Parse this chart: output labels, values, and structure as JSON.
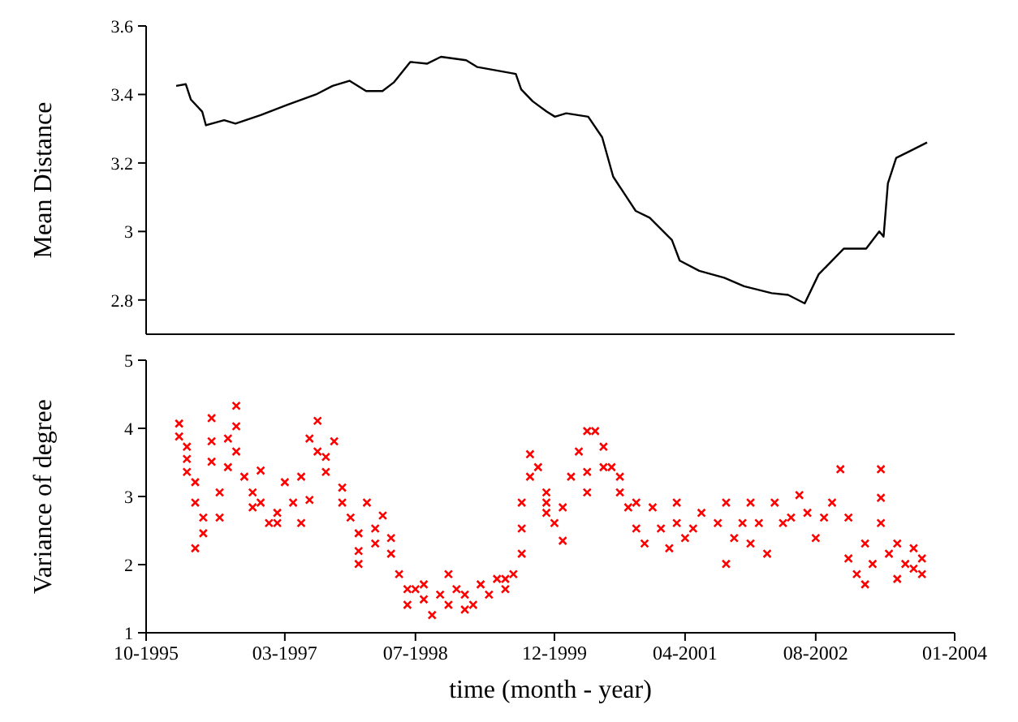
{
  "chart_data": [
    {
      "type": "line",
      "ylabel": "Mean Distance",
      "color": "#000000",
      "marker": "none",
      "line_style": "solid",
      "tick_labels": "y",
      "xlim": [
        "1995-10",
        "2004-01"
      ],
      "xticks": [
        {
          "value": "1995-10",
          "label": null
        },
        {
          "value": "1997-03",
          "label": null
        },
        {
          "value": "1998-07",
          "label": null
        },
        {
          "value": "1999-12",
          "label": null
        },
        {
          "value": "2001-04",
          "label": null
        },
        {
          "value": "2002-08",
          "label": null
        },
        {
          "value": "2004-01",
          "label": null
        }
      ],
      "ylim": [
        2.7,
        3.6
      ],
      "yticks": [
        2.8,
        3,
        3.2,
        3.4,
        3.6
      ],
      "x": [
        "1996-01-21",
        "1996-02-26",
        "1996-03-16",
        "1996-04-27",
        "1996-05-11",
        "1996-07-18",
        "1996-08-29",
        "1996-12-01",
        "1997-03-11",
        "1997-06-25",
        "1997-08-26",
        "1997-10-28",
        "1997-12-29",
        "1998-02-28",
        "1998-04-11",
        "1998-06-12",
        "1998-08-14",
        "1998-10-04",
        "1999-01-06",
        "1999-02-17",
        "1999-07-10",
        "1999-07-30",
        "1999-09-11",
        "1999-11-02",
        "1999-12-03",
        "2000-01-14",
        "2000-04-05",
        "2000-05-27",
        "2000-07-07",
        "2000-09-29",
        "2000-11-20",
        "2001-02-11",
        "2001-03-12",
        "2001-05-24",
        "2001-08-25",
        "2001-11-07",
        "2002-02-18",
        "2002-04-20",
        "2002-06-21",
        "2002-08-12",
        "2002-11-14",
        "2003-02-05",
        "2003-03-26",
        "2003-04-11",
        "2003-04-27",
        "2003-05-28",
        "2003-07-19",
        "2003-09-20"
      ],
      "values": [
        3.425,
        3.43,
        3.385,
        3.35,
        3.31,
        3.325,
        3.315,
        3.34,
        3.37,
        3.4,
        3.425,
        3.44,
        3.41,
        3.41,
        3.435,
        3.495,
        3.49,
        3.51,
        3.5,
        3.48,
        3.46,
        3.415,
        3.38,
        3.35,
        3.335,
        3.345,
        3.335,
        3.275,
        3.16,
        3.06,
        3.04,
        2.975,
        2.915,
        2.885,
        2.865,
        2.84,
        2.82,
        2.815,
        2.79,
        2.875,
        2.95,
        2.95,
        3.0,
        2.985,
        3.14,
        3.215,
        3.235,
        3.26
      ]
    },
    {
      "type": "scatter",
      "ylabel": "Variance of degree",
      "xlabel": "time (month - year)",
      "color": "#ff0000",
      "marker": "cross",
      "xlim": [
        "1995-10",
        "2004-01"
      ],
      "xticks": [
        {
          "value": "1995-10",
          "label": "10-1995"
        },
        {
          "value": "1997-03",
          "label": "03-1997"
        },
        {
          "value": "1998-07",
          "label": "07-1998"
        },
        {
          "value": "1999-12",
          "label": "12-1999"
        },
        {
          "value": "2001-04",
          "label": "04-2001"
        },
        {
          "value": "2002-08",
          "label": "08-2002"
        },
        {
          "value": "2004-01",
          "label": "01-2004"
        }
      ],
      "ylim": [
        1,
        5
      ],
      "yticks": [
        1,
        2,
        3,
        4,
        5
      ],
      "x": [
        "1996-02",
        "1996-02",
        "1996-03",
        "1996-03",
        "1996-03",
        "1996-04",
        "1996-04",
        "1996-04",
        "1996-05",
        "1996-05",
        "1996-06",
        "1996-06",
        "1996-06",
        "1996-07",
        "1996-07",
        "1996-08",
        "1996-08",
        "1996-09",
        "1996-09",
        "1996-09",
        "1996-10",
        "1996-11",
        "1996-11",
        "1996-12",
        "1996-12",
        "1997-01",
        "1997-02",
        "1997-02",
        "1997-03",
        "1997-04",
        "1997-05",
        "1997-05",
        "1997-06",
        "1997-06",
        "1997-07",
        "1997-07",
        "1997-08",
        "1997-08",
        "1997-09",
        "1997-10",
        "1997-10",
        "1997-11",
        "1997-12",
        "1997-12",
        "1997-12",
        "1998-01",
        "1998-02",
        "1998-02",
        "1998-03",
        "1998-04",
        "1998-04",
        "1998-05",
        "1998-06",
        "1998-06",
        "1998-07",
        "1998-08",
        "1998-08",
        "1998-09",
        "1998-10",
        "1998-11",
        "1998-11",
        "1998-12",
        "1999-01",
        "1999-01",
        "1999-02",
        "1999-03",
        "1999-04",
        "1999-05",
        "1999-06",
        "1999-06",
        "1999-07",
        "1999-08",
        "1999-08",
        "1999-08",
        "1999-09",
        "1999-09",
        "1999-10",
        "1999-11",
        "1999-11",
        "1999-11",
        "1999-12",
        "2000-01",
        "2000-01",
        "2000-02",
        "2000-03",
        "2000-04",
        "2000-04",
        "2000-04",
        "2000-05",
        "2000-06",
        "2000-06",
        "2000-07",
        "2000-08",
        "2000-08",
        "2000-09",
        "2000-10",
        "2000-10",
        "2000-11",
        "2000-12",
        "2001-01",
        "2001-02",
        "2001-03",
        "2001-03",
        "2001-04",
        "2001-05",
        "2001-06",
        "2001-08",
        "2001-09",
        "2001-09",
        "2001-10",
        "2001-11",
        "2001-12",
        "2001-12",
        "2002-01",
        "2002-02",
        "2002-03",
        "2002-04",
        "2002-05",
        "2002-06",
        "2002-07",
        "2002-08",
        "2002-09",
        "2002-10",
        "2002-11",
        "2002-12",
        "2002-12",
        "2003-01",
        "2003-02",
        "2003-02",
        "2003-03",
        "2003-04",
        "2003-04",
        "2003-04",
        "2003-05",
        "2003-06",
        "2003-06",
        "2003-07",
        "2003-08",
        "2003-08",
        "2003-09",
        "2003-09"
      ],
      "values": [
        4.07,
        3.88,
        3.55,
        3.73,
        3.36,
        2.91,
        2.24,
        3.21,
        2.46,
        2.69,
        4.15,
        3.81,
        3.51,
        3.06,
        2.69,
        3.85,
        3.43,
        4.33,
        4.03,
        3.66,
        3.29,
        3.06,
        2.84,
        3.38,
        2.91,
        2.61,
        2.76,
        2.61,
        3.21,
        2.91,
        3.29,
        2.61,
        2.95,
        3.85,
        4.11,
        3.66,
        3.58,
        3.36,
        3.81,
        3.13,
        2.91,
        2.69,
        2.46,
        2.01,
        2.2,
        2.91,
        2.53,
        2.31,
        2.72,
        2.39,
        2.16,
        1.86,
        1.64,
        1.41,
        1.64,
        1.49,
        1.71,
        1.26,
        1.56,
        1.86,
        1.41,
        1.64,
        1.34,
        1.56,
        1.41,
        1.71,
        1.56,
        1.79,
        1.64,
        1.79,
        1.86,
        2.16,
        2.53,
        2.91,
        3.29,
        3.62,
        3.43,
        3.06,
        2.91,
        2.76,
        2.61,
        2.35,
        2.84,
        3.29,
        3.66,
        3.36,
        3.06,
        3.96,
        3.96,
        3.43,
        3.73,
        3.43,
        3.06,
        3.29,
        2.84,
        2.91,
        2.53,
        2.31,
        2.84,
        2.53,
        2.24,
        2.91,
        2.61,
        2.39,
        2.53,
        2.76,
        2.61,
        2.91,
        2.01,
        2.39,
        2.61,
        2.91,
        2.31,
        2.61,
        2.16,
        2.91,
        2.61,
        2.69,
        3.02,
        2.76,
        2.39,
        2.69,
        2.91,
        3.4,
        2.69,
        2.09,
        1.86,
        1.71,
        2.31,
        2.01,
        3.4,
        2.98,
        2.61,
        2.16,
        2.31,
        1.79,
        2.01,
        2.24,
        1.94,
        2.09,
        1.86
      ]
    }
  ]
}
